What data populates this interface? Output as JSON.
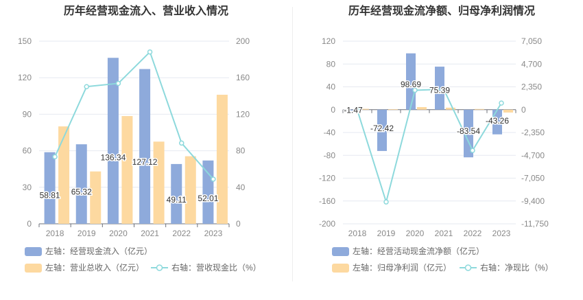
{
  "chart_data": [
    {
      "type": "bar",
      "title": "历年经营现金流入、营业收入情况",
      "categories": [
        "2018",
        "2019",
        "2020",
        "2021",
        "2022",
        "2023"
      ],
      "y_left": {
        "min": 0,
        "max": 150,
        "ticks": [
          "0",
          "30",
          "60",
          "90",
          "120",
          "150"
        ]
      },
      "y_right": {
        "min": 0,
        "max": 200,
        "ticks": [
          "0",
          "40",
          "80",
          "120",
          "160",
          "200"
        ]
      },
      "series": [
        {
          "name": "左轴：经营现金流入（亿元）",
          "kind": "bar",
          "axis": "left",
          "color": "#8eaadb",
          "values": [
            58.81,
            65.32,
            136.34,
            127.12,
            49.11,
            52.01
          ],
          "labels": [
            "58.81",
            "65.32",
            "136.34",
            "127.12",
            "49.11",
            "52.01"
          ]
        },
        {
          "name": "左轴：营业总收入（亿元）",
          "kind": "bar",
          "axis": "left",
          "color": "#fdd9a0",
          "values": [
            80,
            43,
            88.5,
            67.5,
            55.5,
            106
          ]
        },
        {
          "name": "右轴：营收现金比（%）",
          "kind": "line",
          "axis": "right",
          "color": "#8dd9dc",
          "values": [
            73.4,
            150.2,
            153.8,
            188.2,
            88.4,
            48.9
          ]
        }
      ],
      "legend_rows": [
        [
          0
        ],
        [
          1,
          2
        ]
      ]
    },
    {
      "type": "bar",
      "title": "历年经营现金流净额、归母净利润情况",
      "categories": [
        "2018",
        "2019",
        "2020",
        "2021",
        "2022",
        "2023"
      ],
      "y_left": {
        "min": -200,
        "max": 120,
        "ticks": [
          "-200",
          "-160",
          "-120",
          "-80",
          "-40",
          "0",
          "40",
          "80",
          "120"
        ]
      },
      "y_right": {
        "min": -11750,
        "max": 7050,
        "ticks": [
          "-11,750",
          "-9,400",
          "-7,050",
          "-4,700",
          "-2,350",
          "0",
          "2,350",
          "4,700",
          "7,050"
        ]
      },
      "series": [
        {
          "name": "左轴：经营活动现金流净额（亿元）",
          "kind": "bar",
          "axis": "left",
          "color": "#8eaadb",
          "values": [
            -1.47,
            -72.42,
            98.69,
            75.39,
            -83.54,
            -43.26
          ],
          "labels": [
            "-1.47",
            "-72.42",
            "98.69",
            "75.39",
            "-83.54",
            "-43.26"
          ]
        },
        {
          "name": "左轴：归母净利润（亿元）",
          "kind": "bar",
          "axis": "left",
          "color": "#fdd9a0",
          "values": [
            1.5,
            0.8,
            4.5,
            3.5,
            1.2,
            -5
          ]
        },
        {
          "name": "右轴：净现比（%）",
          "kind": "line",
          "axis": "right",
          "color": "#8dd9dc",
          "values": [
            -60,
            -9500,
            2000,
            2100,
            -4200,
            680
          ]
        }
      ],
      "legend_rows": [
        [
          0
        ],
        [
          1,
          2
        ]
      ]
    }
  ]
}
